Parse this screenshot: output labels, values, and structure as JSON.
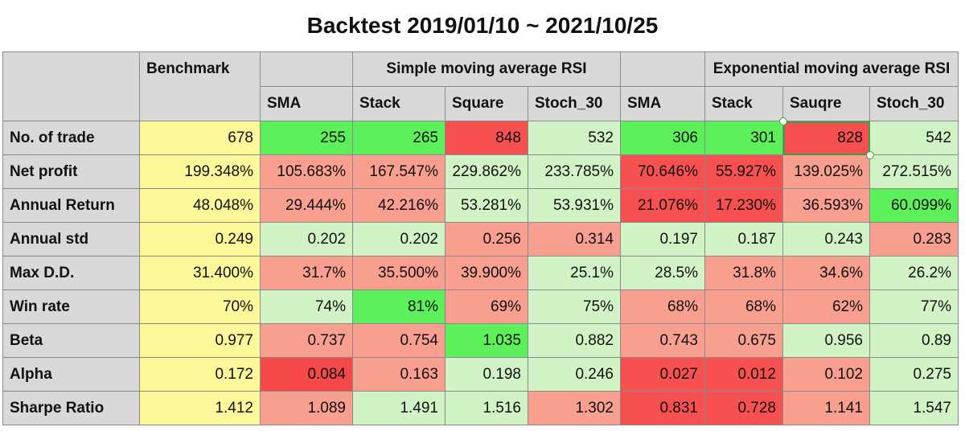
{
  "title": "Backtest 2019/01/10 ~ 2021/10/25",
  "chart_data": {
    "type": "table",
    "title": "Backtest 2019/01/10 ~ 2021/10/25",
    "groups": [
      {
        "label": "Benchmark",
        "columns": [
          ""
        ]
      },
      {
        "label": "Simple moving average RSI",
        "columns": [
          "SMA",
          "Stack",
          "Square",
          "Stoch_30"
        ]
      },
      {
        "label": "Exponential moving average RSI",
        "columns": [
          "SMA",
          "Stack",
          "Sauqre",
          "Stoch_30"
        ]
      }
    ],
    "rows": [
      {
        "label": "No. of trade",
        "values": [
          "678",
          "255",
          "265",
          "848",
          "532",
          "306",
          "301",
          "828",
          "542"
        ]
      },
      {
        "label": "Net profit",
        "values": [
          "199.348%",
          "105.683%",
          "167.547%",
          "229.862%",
          "233.785%",
          "70.646%",
          "55.927%",
          "139.025%",
          "272.515%"
        ]
      },
      {
        "label": "Annual Return",
        "values": [
          "48.048%",
          "29.444%",
          "42.216%",
          "53.281%",
          "53.931%",
          "21.076%",
          "17.230%",
          "36.593%",
          "60.099%"
        ]
      },
      {
        "label": "Annual std",
        "values": [
          "0.249",
          "0.202",
          "0.202",
          "0.256",
          "0.314",
          "0.197",
          "0.187",
          "0.243",
          "0.283"
        ]
      },
      {
        "label": "Max D.D.",
        "values": [
          "31.400%",
          "31.7%",
          "35.500%",
          "39.900%",
          "25.1%",
          "28.5%",
          "31.8%",
          "34.6%",
          "26.2%"
        ]
      },
      {
        "label": "Win rate",
        "values": [
          "70%",
          "74%",
          "81%",
          "69%",
          "75%",
          "68%",
          "68%",
          "62%",
          "77%"
        ]
      },
      {
        "label": "Beta",
        "values": [
          "0.977",
          "0.737",
          "0.754",
          "1.035",
          "0.882",
          "0.743",
          "0.675",
          "0.956",
          "0.89"
        ]
      },
      {
        "label": "Alpha",
        "values": [
          "0.172",
          "0.084",
          "0.163",
          "0.198",
          "0.246",
          "0.027",
          "0.012",
          "0.102",
          "0.275"
        ]
      },
      {
        "label": "Sharpe Ratio",
        "values": [
          "1.412",
          "1.089",
          "1.491",
          "1.516",
          "1.302",
          "0.831",
          "0.728",
          "1.141",
          "1.547"
        ]
      }
    ],
    "cell_colors": [
      [
        "#fdf89a",
        "#5cf05a",
        "#5cf05a",
        "#f75050",
        "#d2f3c6",
        "#5cf05a",
        "#5cf05a",
        "#f75050",
        "#d2f3c6"
      ],
      [
        "#fdf89a",
        "#f89f90",
        "#f89f90",
        "#d2f3c6",
        "#d2f3c6",
        "#f75050",
        "#f75050",
        "#f89f90",
        "#d2f3c6"
      ],
      [
        "#fdf89a",
        "#f89f90",
        "#f89f90",
        "#d2f3c6",
        "#d2f3c6",
        "#f75050",
        "#f75050",
        "#f89f90",
        "#5cf05a"
      ],
      [
        "#fdf89a",
        "#d2f3c6",
        "#d2f3c6",
        "#f89f90",
        "#f89f90",
        "#d2f3c6",
        "#d2f3c6",
        "#d2f3c6",
        "#f89f90"
      ],
      [
        "#fdf89a",
        "#f89f90",
        "#f89f90",
        "#f89f90",
        "#d2f3c6",
        "#d2f3c6",
        "#f89f90",
        "#f89f90",
        "#d2f3c6"
      ],
      [
        "#fdf89a",
        "#d2f3c6",
        "#5cf05a",
        "#f89f90",
        "#d2f3c6",
        "#f89f90",
        "#f89f90",
        "#f89f90",
        "#d2f3c6"
      ],
      [
        "#fdf89a",
        "#f89f90",
        "#f89f90",
        "#5cf05a",
        "#d2f3c6",
        "#f89f90",
        "#f89f90",
        "#d2f3c6",
        "#d2f3c6"
      ],
      [
        "#fdf89a",
        "#f54848",
        "#f89f90",
        "#d2f3c6",
        "#d2f3c6",
        "#f75050",
        "#f75050",
        "#f89f90",
        "#d2f3c6"
      ],
      [
        "#fdf89a",
        "#f89f90",
        "#d2f3c6",
        "#d2f3c6",
        "#f89f90",
        "#f75050",
        "#f75050",
        "#f89f90",
        "#d2f3c6"
      ]
    ],
    "selected_cell": {
      "row": "No. of trade",
      "column": "Sauqre"
    }
  }
}
